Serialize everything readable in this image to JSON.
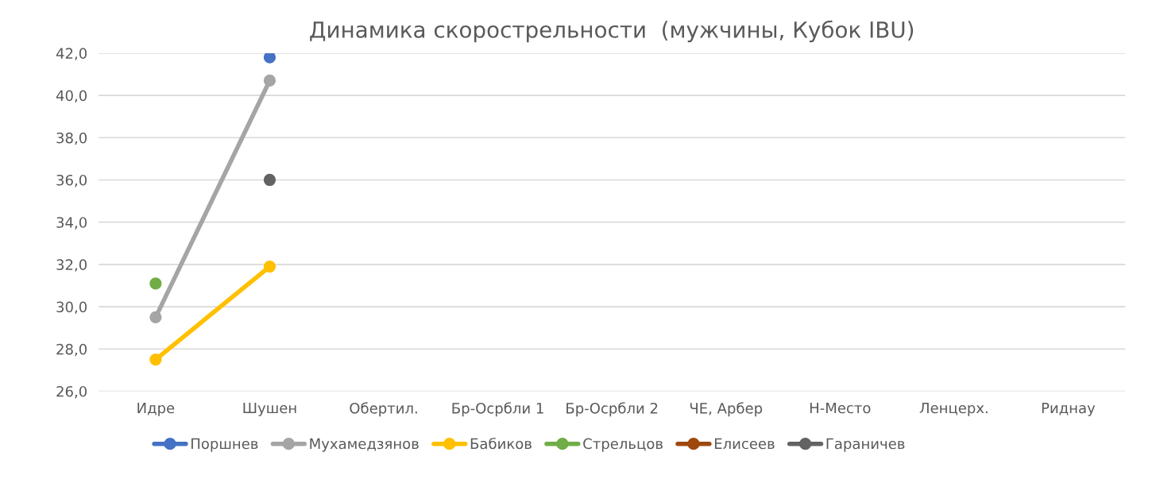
{
  "chart_data": {
    "type": "line",
    "title": "Динамика скорострельности  (мужчины, Кубок IBU)",
    "categories": [
      "Идре",
      "Шушен",
      "Обертил.",
      "Бр-Осрбли 1",
      "Бр-Осрбли 2",
      "ЧЕ, Арбер",
      "Н-Место",
      "Ленцерх.",
      "Риднау"
    ],
    "series": [
      {
        "name": "Поршнев",
        "color": "#4472c4",
        "values": [
          null,
          41.8,
          null,
          null,
          null,
          null,
          null,
          null,
          null
        ]
      },
      {
        "name": "Мухамедзянов",
        "color": "#a5a5a5",
        "values": [
          29.5,
          40.7,
          null,
          null,
          null,
          null,
          null,
          null,
          null
        ]
      },
      {
        "name": "Бабиков",
        "color": "#ffc000",
        "values": [
          27.5,
          31.9,
          null,
          null,
          null,
          null,
          null,
          null,
          null
        ]
      },
      {
        "name": "Стрельцов",
        "color": "#70ad47",
        "values": [
          31.1,
          null,
          null,
          null,
          null,
          null,
          null,
          null,
          null
        ]
      },
      {
        "name": "Елисеев",
        "color": "#9e480e",
        "values": [
          null,
          null,
          null,
          null,
          null,
          null,
          null,
          null,
          null
        ]
      },
      {
        "name": "Гараничев",
        "color": "#636363",
        "values": [
          null,
          36.0,
          null,
          null,
          null,
          null,
          null,
          null,
          null
        ]
      }
    ],
    "ylim": [
      26,
      42
    ],
    "yticks": [
      {
        "value": 26,
        "label": "26,0"
      },
      {
        "value": 28,
        "label": "28,0"
      },
      {
        "value": 30,
        "label": "30,0"
      },
      {
        "value": 32,
        "label": "32,0"
      },
      {
        "value": 34,
        "label": "34,0"
      },
      {
        "value": 36,
        "label": "36,0"
      },
      {
        "value": 38,
        "label": "38,0"
      },
      {
        "value": 40,
        "label": "40,0"
      },
      {
        "value": 42,
        "label": "42,0"
      }
    ],
    "grid": "y",
    "legend": "bottom",
    "marker": "circle",
    "line_style": "solid"
  }
}
